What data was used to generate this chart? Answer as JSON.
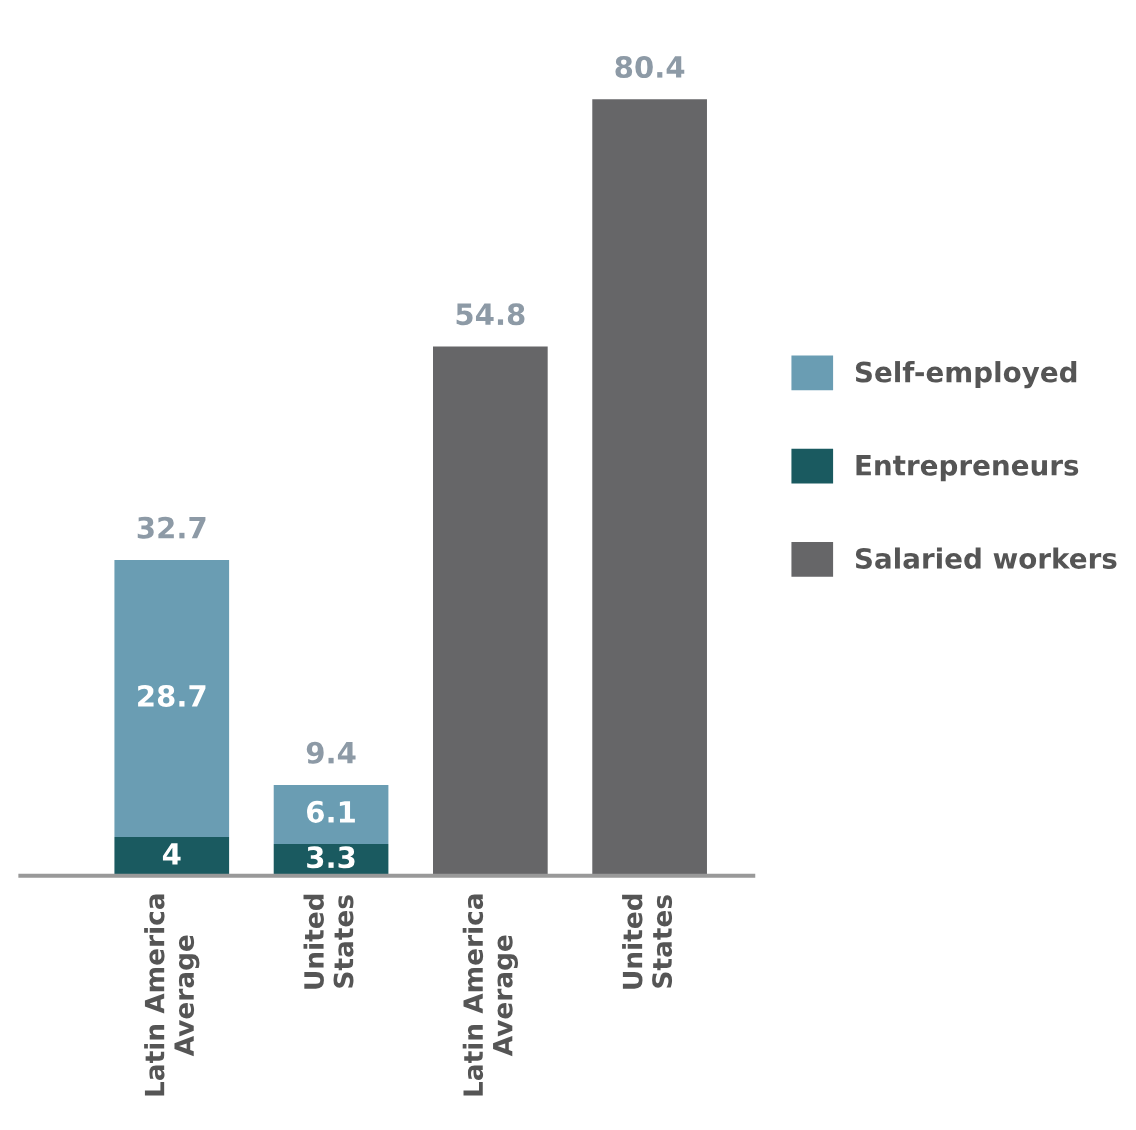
{
  "chart_data": {
    "type": "bar",
    "stacked": true,
    "categories": [
      "Latin America\nAverage",
      "United\nStates",
      "Latin America\nAverage",
      "United\nStates"
    ],
    "series": [
      {
        "name": "Entrepreneurs",
        "color": "#1a5a60",
        "values": [
          4,
          3.3,
          null,
          null
        ],
        "value_labels": [
          "4",
          "3.3",
          null,
          null
        ]
      },
      {
        "name": "Self-employed",
        "color": "#6a9db3",
        "values": [
          28.7,
          6.1,
          null,
          null
        ],
        "value_labels": [
          "28.7",
          "6.1",
          null,
          null
        ]
      },
      {
        "name": "Salaried workers",
        "color": "#666668",
        "values": [
          null,
          null,
          54.8,
          80.4
        ],
        "value_labels": [
          null,
          null,
          null,
          null
        ]
      }
    ],
    "totals": [
      "32.7",
      "9.4",
      "54.8",
      "80.4"
    ],
    "legend": "right",
    "grid": false
  }
}
